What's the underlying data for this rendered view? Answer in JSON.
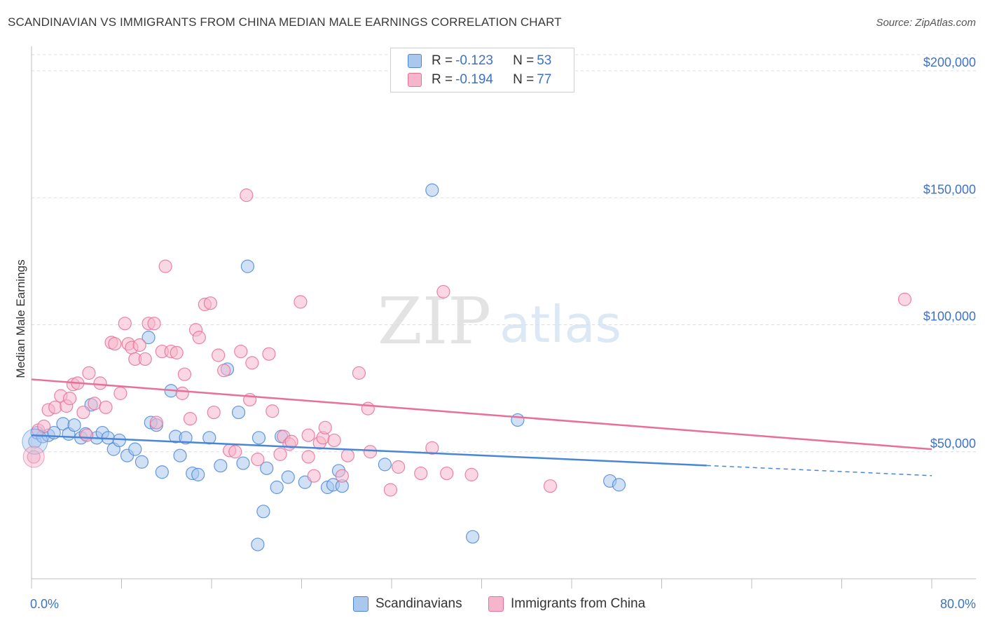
{
  "header": {
    "title": "SCANDINAVIAN VS IMMIGRANTS FROM CHINA MEDIAN MALE EARNINGS CORRELATION CHART",
    "source": "Source: ZipAtlas.com"
  },
  "watermark": {
    "zip": "ZIP",
    "atlas": "atlas"
  },
  "legend": {
    "r_label": "R =",
    "n_label": "N =",
    "rows": [
      {
        "r": "-0.123",
        "n": "53",
        "color": "#4a86d8"
      },
      {
        "r": "-0.194",
        "n": "77",
        "color": "#e86f96"
      }
    ]
  },
  "bottom_legend": [
    "Scandinavians",
    "Immigrants from China"
  ],
  "x_axis": {
    "min_label": "0.0%",
    "max_label": "80.0%"
  },
  "chart_data": {
    "type": "scatter",
    "title": "SCANDINAVIAN VS IMMIGRANTS FROM CHINA MEDIAN MALE EARNINGS CORRELATION CHART",
    "xlabel": "",
    "ylabel": "Median Male Earnings",
    "xlim": [
      0,
      80
    ],
    "ylim": [
      0,
      208000
    ],
    "y_ticks": [
      {
        "value": 50000,
        "label": "$50,000"
      },
      {
        "value": 100000,
        "label": "$100,000"
      },
      {
        "value": 150000,
        "label": "$150,000"
      },
      {
        "value": 200000,
        "label": "$200,000"
      }
    ],
    "grid": true,
    "series": [
      {
        "name": "Scandinavians",
        "color": "#4a86d8",
        "fill": "#aac8ee",
        "trend": {
          "x": [
            0,
            60,
            80
          ],
          "y": [
            56500,
            44600,
            40600
          ],
          "solid_until": 60
        },
        "points": [
          [
            0.3,
            54000
          ],
          [
            0.5,
            57500
          ],
          [
            1,
            56000
          ],
          [
            1.5,
            56500
          ],
          [
            2,
            57500
          ],
          [
            2.8,
            61000
          ],
          [
            3.3,
            57000
          ],
          [
            3.8,
            60500
          ],
          [
            4.4,
            55500
          ],
          [
            4.8,
            57000
          ],
          [
            5.3,
            68500
          ],
          [
            5.8,
            55500
          ],
          [
            6.3,
            57500
          ],
          [
            6.8,
            55500
          ],
          [
            7.3,
            51000
          ],
          [
            7.8,
            54500
          ],
          [
            8.5,
            48500
          ],
          [
            9.2,
            51000
          ],
          [
            9.8,
            46000
          ],
          [
            10.4,
            95000
          ],
          [
            10.6,
            61500
          ],
          [
            11.1,
            60500
          ],
          [
            11.6,
            42000
          ],
          [
            12.4,
            74000
          ],
          [
            12.8,
            56000
          ],
          [
            13.2,
            48500
          ],
          [
            13.7,
            55500
          ],
          [
            14.3,
            41500
          ],
          [
            14.8,
            41000
          ],
          [
            15.8,
            55500
          ],
          [
            16.8,
            44500
          ],
          [
            17.4,
            82500
          ],
          [
            18.4,
            65500
          ],
          [
            18.8,
            45500
          ],
          [
            19.2,
            123000
          ],
          [
            20.2,
            55500
          ],
          [
            20.6,
            26500
          ],
          [
            20.9,
            43500
          ],
          [
            21.8,
            36000
          ],
          [
            22.2,
            56000
          ],
          [
            22.8,
            40000
          ],
          [
            20.1,
            13500
          ],
          [
            24.3,
            38000
          ],
          [
            26.3,
            36000
          ],
          [
            27.3,
            42500
          ],
          [
            26.8,
            37000
          ],
          [
            27.6,
            36500
          ],
          [
            31.4,
            45000
          ],
          [
            35.6,
            153000
          ],
          [
            39.2,
            16500
          ],
          [
            43.2,
            62500
          ],
          [
            51.4,
            38500
          ],
          [
            52.2,
            37000
          ]
        ]
      },
      {
        "name": "Immigrants from China",
        "color": "#e86f96",
        "fill": "#f5b6cb",
        "trend": {
          "x": [
            0,
            80
          ],
          "y": [
            78500,
            51000
          ]
        },
        "points": [
          [
            0.2,
            48000
          ],
          [
            0.6,
            58500
          ],
          [
            1.1,
            60000
          ],
          [
            1.5,
            66500
          ],
          [
            2.1,
            67500
          ],
          [
            2.6,
            72000
          ],
          [
            3.1,
            68000
          ],
          [
            3.4,
            71000
          ],
          [
            3.7,
            76500
          ],
          [
            4.1,
            77000
          ],
          [
            4.6,
            65500
          ],
          [
            4.9,
            56500
          ],
          [
            5.1,
            81000
          ],
          [
            5.6,
            69000
          ],
          [
            6.1,
            77000
          ],
          [
            6.6,
            67500
          ],
          [
            7.1,
            93000
          ],
          [
            7.4,
            92500
          ],
          [
            7.9,
            73000
          ],
          [
            8.3,
            100500
          ],
          [
            8.6,
            92500
          ],
          [
            8.9,
            91000
          ],
          [
            9.2,
            86500
          ],
          [
            9.6,
            92000
          ],
          [
            10.1,
            86500
          ],
          [
            10.4,
            100500
          ],
          [
            10.9,
            100500
          ],
          [
            11.1,
            61500
          ],
          [
            11.6,
            89500
          ],
          [
            11.9,
            123000
          ],
          [
            12.4,
            89500
          ],
          [
            12.9,
            89000
          ],
          [
            13.4,
            73000
          ],
          [
            13.6,
            80500
          ],
          [
            14.1,
            63000
          ],
          [
            14.6,
            98000
          ],
          [
            14.9,
            95000
          ],
          [
            15.4,
            108000
          ],
          [
            15.9,
            108500
          ],
          [
            16.2,
            65500
          ],
          [
            16.6,
            88000
          ],
          [
            17.1,
            82000
          ],
          [
            17.6,
            50500
          ],
          [
            18.1,
            50000
          ],
          [
            18.6,
            89500
          ],
          [
            19.1,
            151000
          ],
          [
            19.4,
            70500
          ],
          [
            19.6,
            85000
          ],
          [
            20.1,
            47000
          ],
          [
            21.1,
            88500
          ],
          [
            21.4,
            66000
          ],
          [
            22.1,
            49000
          ],
          [
            22.4,
            56000
          ],
          [
            22.9,
            53000
          ],
          [
            23.9,
            109000
          ],
          [
            24.6,
            56500
          ],
          [
            25.1,
            40500
          ],
          [
            25.6,
            53500
          ],
          [
            25.9,
            55500
          ],
          [
            26.1,
            59500
          ],
          [
            26.9,
            54500
          ],
          [
            27.6,
            40500
          ],
          [
            28.1,
            48500
          ],
          [
            29.1,
            81000
          ],
          [
            29.9,
            67000
          ],
          [
            30.1,
            50000
          ],
          [
            31.9,
            35000
          ],
          [
            32.6,
            44000
          ],
          [
            34.6,
            41500
          ],
          [
            35.6,
            51500
          ],
          [
            36.6,
            113000
          ],
          [
            36.9,
            41500
          ],
          [
            39.1,
            41000
          ],
          [
            46.1,
            36500
          ],
          [
            77.6,
            110000
          ],
          [
            24.6,
            48000
          ],
          [
            23.1,
            54000
          ]
        ]
      }
    ]
  }
}
